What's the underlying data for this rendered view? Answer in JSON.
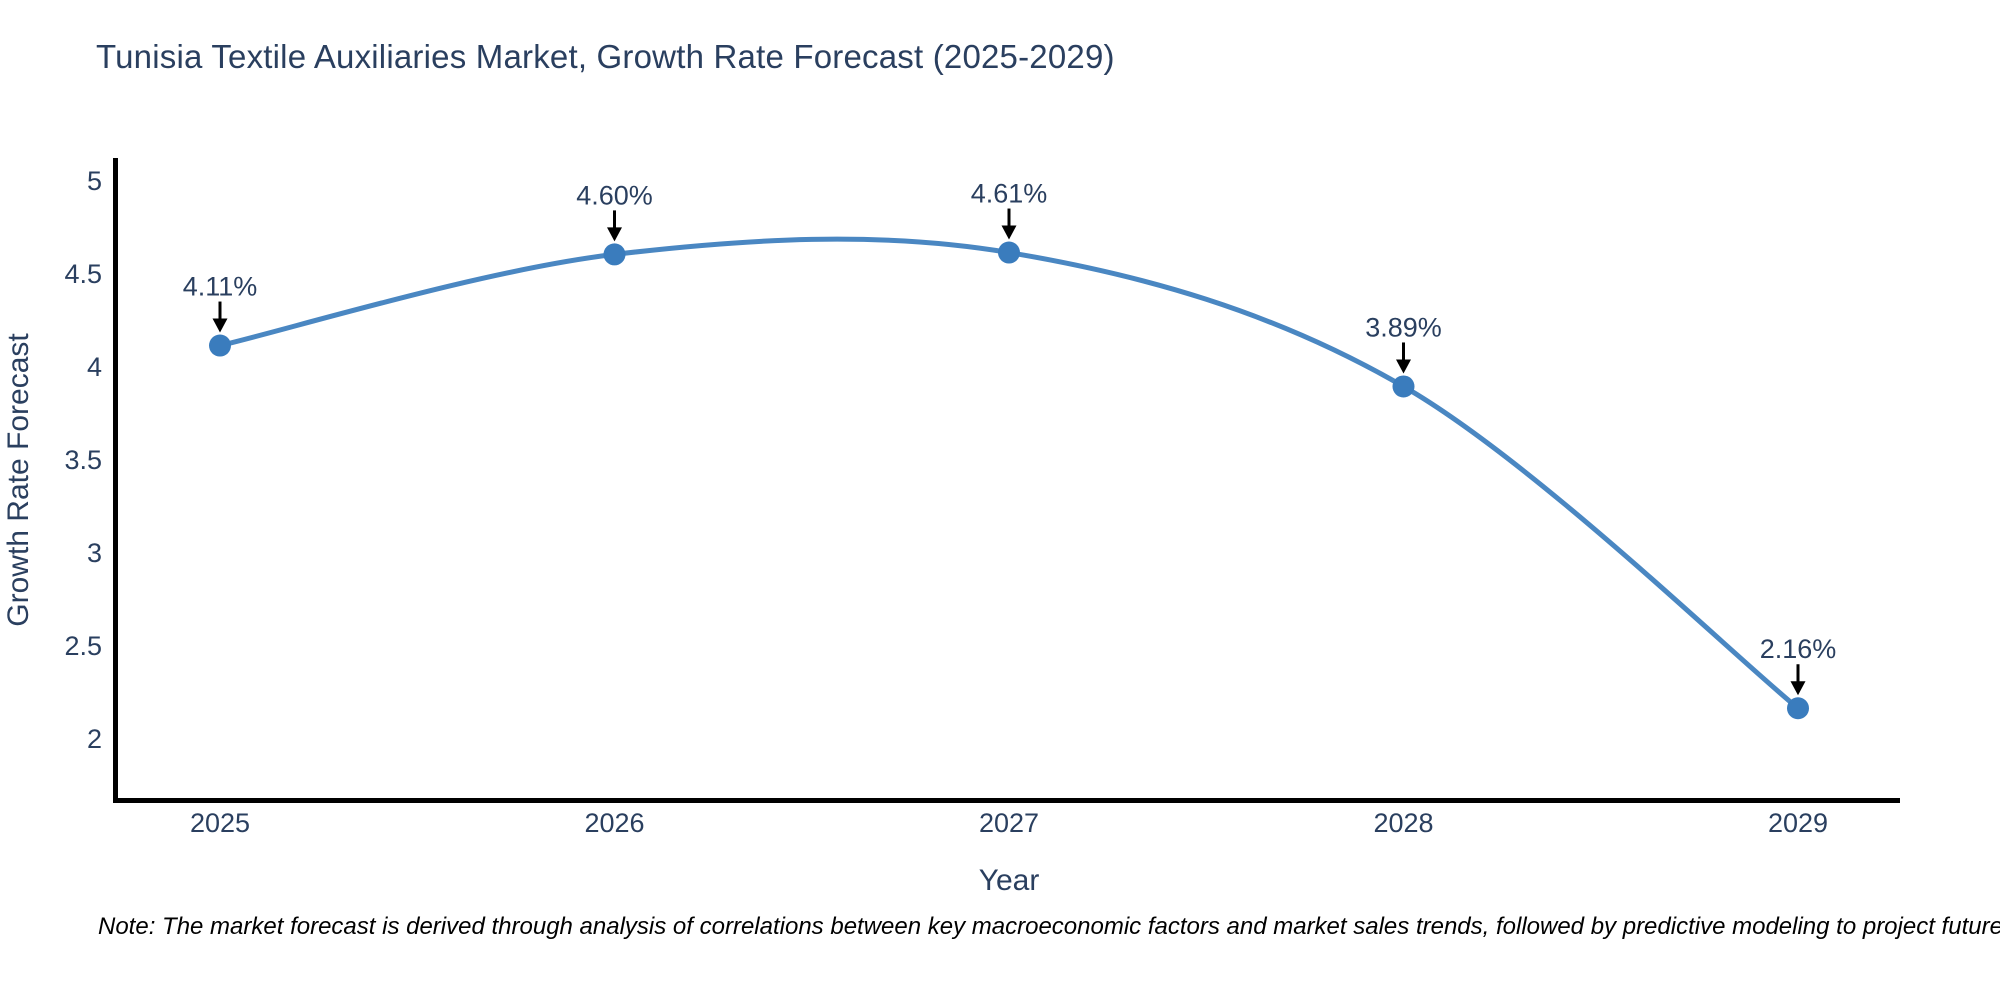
{
  "page": {
    "note": "Note: The market forecast is derived through analysis of correlations between key macroeconomic factors and market sales trends, followed by predictive modeling to project future sales"
  },
  "chart_data": {
    "type": "line",
    "title": "Tunisia Textile Auxiliaries Market, Growth Rate Forecast (2025-2029)",
    "xlabel": "Year",
    "ylabel": "Growth Rate Forecast",
    "categories": [
      "2025",
      "2026",
      "2027",
      "2028",
      "2029"
    ],
    "series": [
      {
        "name": "Growth Rate Forecast",
        "values": [
          4.11,
          4.6,
          4.61,
          3.89,
          2.16
        ],
        "point_labels": [
          "4.11%",
          "4.60%",
          "4.61%",
          "3.89%",
          "2.16%"
        ]
      }
    ],
    "ytick_labels": [
      "5",
      "4.5",
      "4",
      "3.5",
      "3",
      "2.5",
      "2"
    ],
    "ytick_values": [
      5,
      4.5,
      4,
      3.5,
      3,
      2.5,
      2
    ],
    "ylim": [
      1.67,
      5.11
    ],
    "line_shape": "spline",
    "grid": false,
    "legend_position": "none",
    "colors": {
      "line": "#4a87c2",
      "marker": "#3a7cbd",
      "axis": "#000000",
      "tick_text": "#2a3f5f",
      "annotation_text": "#2a3f5f",
      "annotation_arrow": "#000000",
      "title_text": "#2a3f5f",
      "background": "#ffffff"
    }
  }
}
